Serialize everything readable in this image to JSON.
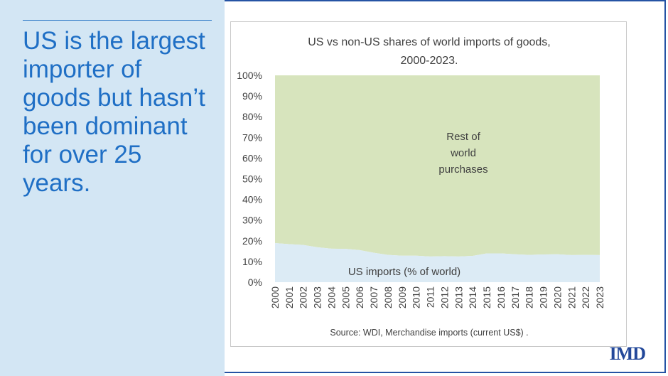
{
  "slide": {
    "headline": "US is the largest importer of goods but hasn’t been dominant for over 25 years.",
    "logo": "IMD"
  },
  "colors": {
    "panel_bg": "#d3e6f4",
    "headline": "#1f6fc5",
    "border": "#2553a4",
    "rest_area": "#d7e4bd",
    "us_area": "#dcebf5"
  },
  "chart_data": {
    "type": "area",
    "title_line1": "US vs non-US shares of world imports of goods,",
    "title_line2": "2000-2023.",
    "x": [
      "2000",
      "2001",
      "2002",
      "2003",
      "2004",
      "2005",
      "2006",
      "2007",
      "2008",
      "2009",
      "2010",
      "2011",
      "2012",
      "2013",
      "2014",
      "2015",
      "2016",
      "2017",
      "2018",
      "2019",
      "2020",
      "2021",
      "2022",
      "2023"
    ],
    "series": [
      {
        "name": "US imports (% of world)",
        "values": [
          18.9,
          18.4,
          18.0,
          16.9,
          16.2,
          16.1,
          15.5,
          14.2,
          13.2,
          12.8,
          12.8,
          12.4,
          12.6,
          12.4,
          12.7,
          13.9,
          13.9,
          13.5,
          13.2,
          13.4,
          13.5,
          13.1,
          13.2,
          13.1
        ]
      },
      {
        "name": "Rest of world purchases",
        "values": [
          81.1,
          81.6,
          82.0,
          83.1,
          83.8,
          83.9,
          84.5,
          85.8,
          86.8,
          87.2,
          87.2,
          87.6,
          87.4,
          87.6,
          87.3,
          86.1,
          86.1,
          86.5,
          86.8,
          86.6,
          86.5,
          86.9,
          86.8,
          86.9
        ]
      }
    ],
    "ylim": [
      0,
      100
    ],
    "yticks": [
      "0%",
      "10%",
      "20%",
      "30%",
      "40%",
      "50%",
      "60%",
      "70%",
      "80%",
      "90%",
      "100%"
    ],
    "labels": {
      "rest": [
        "Rest of",
        "world",
        "purchases"
      ],
      "us": "US imports (% of world)"
    },
    "source": "Source: WDI, Merchandise imports (current US$) ."
  }
}
